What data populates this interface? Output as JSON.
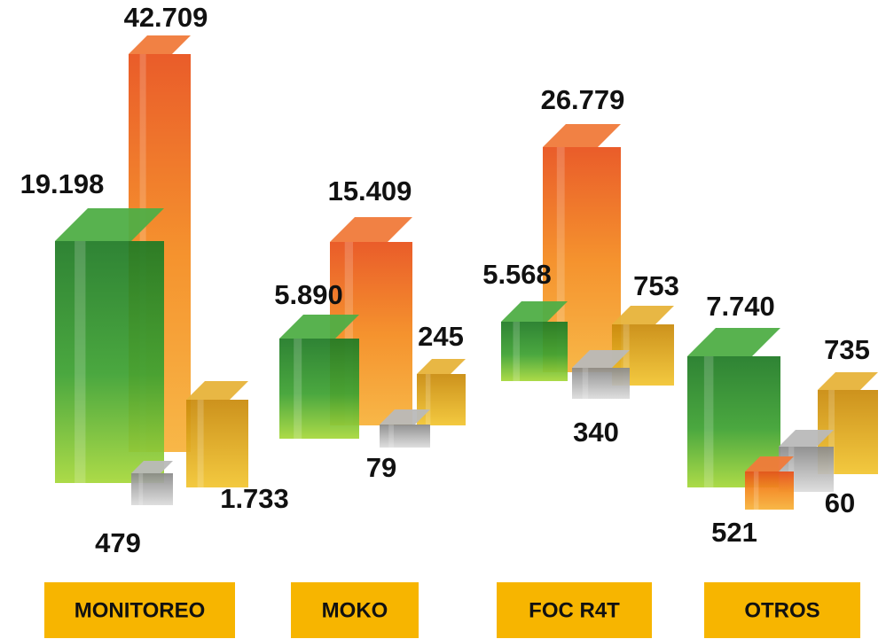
{
  "groups": [
    {
      "label": "MONITOREO",
      "values": [
        "42.709",
        "19.198",
        "1.733",
        "479"
      ]
    },
    {
      "label": "MOKO",
      "values": [
        "15.409",
        "5.890",
        "245",
        "79"
      ]
    },
    {
      "label": "FOC R4T",
      "values": [
        "26.779",
        "5.568",
        "753",
        "340"
      ]
    },
    {
      "label": "OTROS",
      "values": [
        "7.740",
        "735",
        "60",
        "521"
      ]
    }
  ]
}
